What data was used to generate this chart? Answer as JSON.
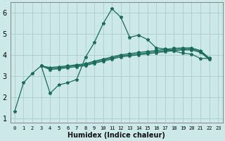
{
  "xlabel": "Humidex (Indice chaleur)",
  "bg_color": "#cce8e8",
  "grid_color": "#aacccc",
  "line_color": "#1a6b5a",
  "xlim": [
    -0.5,
    23.5
  ],
  "ylim": [
    0.8,
    6.5
  ],
  "yticks": [
    1,
    2,
    3,
    4,
    5,
    6
  ],
  "xticks": [
    0,
    1,
    2,
    3,
    4,
    5,
    6,
    7,
    8,
    9,
    10,
    11,
    12,
    13,
    14,
    15,
    16,
    17,
    18,
    19,
    20,
    21,
    22,
    23
  ],
  "series": [
    {
      "x": [
        0,
        1,
        2,
        3,
        4,
        5,
        6,
        7,
        8,
        9,
        10,
        11,
        12,
        13,
        14,
        15,
        16,
        17,
        18,
        19,
        20,
        21,
        22
      ],
      "y": [
        1.35,
        2.7,
        3.15,
        3.5,
        2.2,
        2.6,
        2.7,
        2.85,
        3.9,
        4.6,
        5.5,
        6.2,
        5.8,
        4.85,
        4.95,
        4.75,
        4.35,
        4.3,
        4.2,
        4.1,
        4.05,
        3.85,
        3.85
      ]
    },
    {
      "x": [
        3,
        4,
        5,
        6,
        7,
        8,
        9,
        10,
        11,
        12,
        13,
        14,
        15,
        16,
        17,
        18,
        19,
        20,
        21,
        22
      ],
      "y": [
        3.5,
        3.42,
        3.46,
        3.5,
        3.55,
        3.6,
        3.72,
        3.82,
        3.92,
        4.02,
        4.08,
        4.13,
        4.18,
        4.23,
        4.28,
        4.33,
        4.35,
        4.35,
        4.22,
        3.87
      ]
    },
    {
      "x": [
        3,
        4,
        5,
        6,
        7,
        8,
        9,
        10,
        11,
        12,
        13,
        14,
        15,
        16,
        17,
        18,
        19,
        20,
        21,
        22
      ],
      "y": [
        3.5,
        3.37,
        3.41,
        3.46,
        3.51,
        3.56,
        3.67,
        3.77,
        3.87,
        3.97,
        4.02,
        4.07,
        4.12,
        4.17,
        4.22,
        4.27,
        4.3,
        4.3,
        4.18,
        3.83
      ]
    },
    {
      "x": [
        3,
        4,
        5,
        6,
        7,
        8,
        9,
        10,
        11,
        12,
        13,
        14,
        15,
        16,
        17,
        18,
        19,
        20,
        21,
        22
      ],
      "y": [
        3.5,
        3.32,
        3.36,
        3.41,
        3.46,
        3.51,
        3.62,
        3.72,
        3.82,
        3.92,
        3.97,
        4.02,
        4.07,
        4.12,
        4.17,
        4.22,
        4.25,
        4.25,
        4.14,
        3.8
      ]
    }
  ]
}
